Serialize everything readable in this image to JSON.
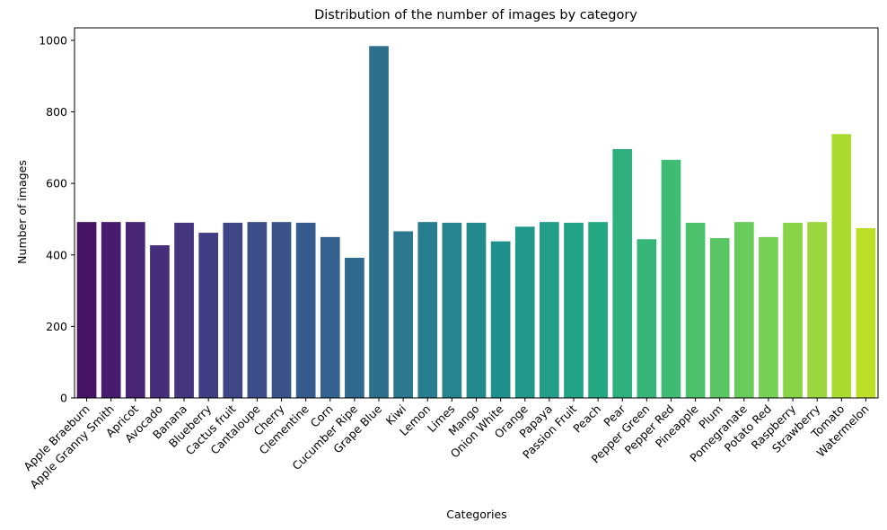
{
  "chart_data": {
    "type": "bar",
    "title": "Distribution of the number of images by category",
    "xlabel": "Categories",
    "ylabel": "Number of images",
    "ylim": [
      0,
      1035
    ],
    "yticks": [
      0,
      200,
      400,
      600,
      800,
      1000
    ],
    "grid": false,
    "legend": "none",
    "palette": "viridis",
    "categories": [
      "Apple Braeburn",
      "Apple Granny Smith",
      "Apricot",
      "Avocado",
      "Banana",
      "Blueberry",
      "Cactus fruit",
      "Cantaloupe",
      "Cherry",
      "Clementine",
      "Corn",
      "Cucumber Ripe",
      "Grape Blue",
      "Kiwi",
      "Lemon",
      "Limes",
      "Mango",
      "Onion White",
      "Orange",
      "Papaya",
      "Passion Fruit",
      "Peach",
      "Pear",
      "Pepper Green",
      "Pepper Red",
      "Pineapple",
      "Plum",
      "Pomegranate",
      "Potato Red",
      "Raspberry",
      "Strawberry",
      "Tomato",
      "Watermelon"
    ],
    "values": [
      492,
      492,
      492,
      427,
      490,
      462,
      490,
      492,
      492,
      490,
      450,
      392,
      984,
      466,
      492,
      490,
      490,
      438,
      479,
      492,
      490,
      492,
      696,
      444,
      666,
      490,
      447,
      492,
      450,
      490,
      492,
      738,
      475
    ]
  }
}
